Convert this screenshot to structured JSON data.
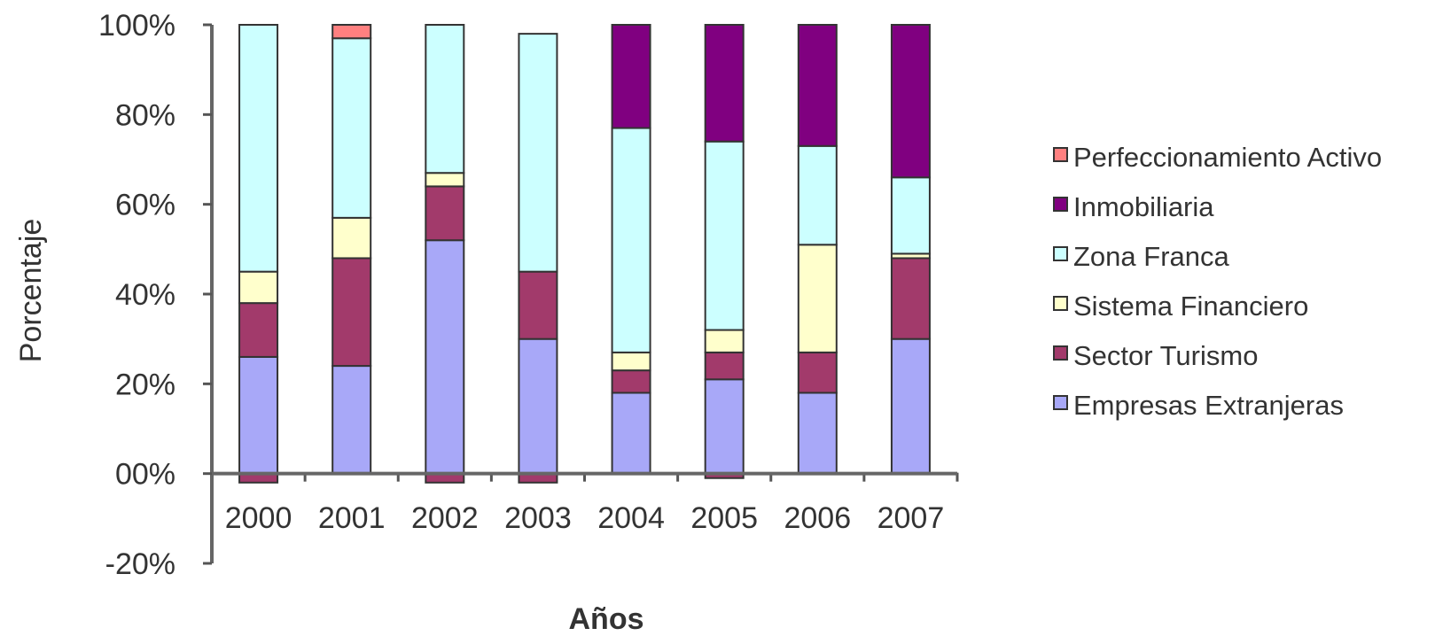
{
  "chart_data": {
    "type": "bar",
    "stacked": true,
    "categories": [
      "2000",
      "2001",
      "2002",
      "2003",
      "2004",
      "2005",
      "2006",
      "2007"
    ],
    "series": [
      {
        "name": "Empresas Extranjeras",
        "color": "#a8a8f8",
        "values": [
          26,
          24,
          52,
          30,
          18,
          21,
          18,
          30
        ]
      },
      {
        "name": "Sector Turismo",
        "color": "#a23a6b",
        "values": [
          12,
          24,
          12,
          15,
          5,
          6,
          9,
          18
        ]
      },
      {
        "name": "Sistema Financiero",
        "color": "#ffffcc",
        "values": [
          7,
          9,
          3,
          0,
          4,
          5,
          24,
          1
        ]
      },
      {
        "name": "Zona Franca",
        "color": "#ccffff",
        "values": [
          55,
          40,
          33,
          53,
          50,
          42,
          22,
          17
        ]
      },
      {
        "name": "Inmobiliaria",
        "color": "#800080",
        "values": [
          0,
          0,
          0,
          0,
          23,
          26,
          27,
          34
        ]
      },
      {
        "name": "Perfeccionamiento Activo",
        "color": "#ff8080",
        "values": [
          0,
          3,
          0,
          0,
          0,
          0,
          0,
          0
        ]
      }
    ],
    "negative_values": [
      -2,
      0,
      -2,
      -2,
      0,
      -1,
      0,
      0
    ],
    "negative_color": "#a23a6b",
    "ylim": [
      -20,
      100
    ],
    "yticks": [
      "-20%",
      "00%",
      "20%",
      "40%",
      "60%",
      "80%",
      "100%"
    ],
    "xlabel": "Años",
    "ylabel": "Porcentaje",
    "legend_position": "right",
    "grid": false
  }
}
